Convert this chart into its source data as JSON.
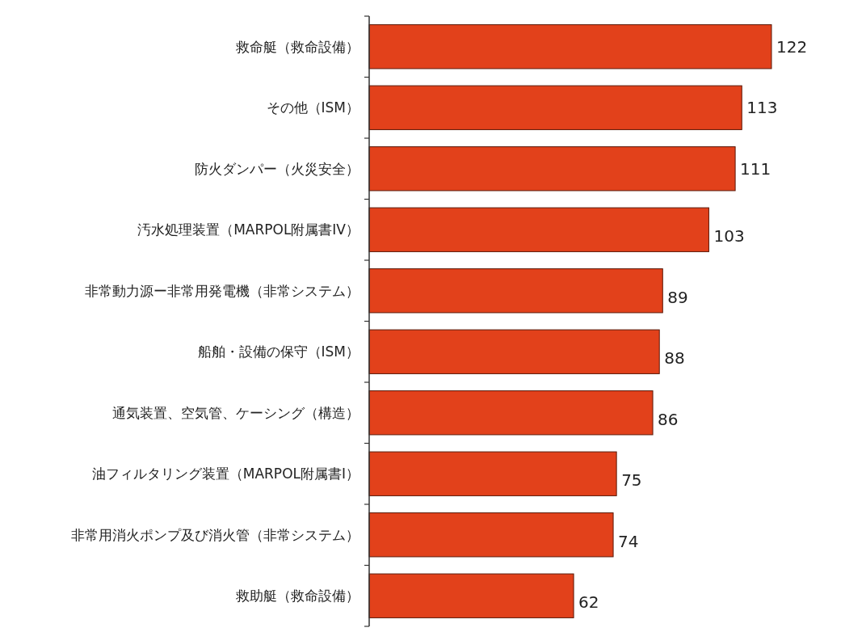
{
  "chart_data": {
    "type": "bar",
    "orientation": "horizontal",
    "categories": [
      "救命艇（救命設備）",
      "その他（ISM）",
      "防火ダンパー（火災安全）",
      "汚水処理装置（MARPOL附属書IV）",
      "非常動力源ー非常用発電機（非常システム）",
      "船舶・設備の保守（ISM）",
      "通気装置、空気管、ケーシング（構造）",
      "油フィルタリング装置（MARPOL附属書I）",
      "非常用消火ポンプ及び消火管（非常システム）",
      "救助艇（救命設備）"
    ],
    "values": [
      122,
      113,
      111,
      103,
      89,
      88,
      86,
      75,
      74,
      62
    ],
    "color": "#e2411b",
    "data_labels": true
  }
}
